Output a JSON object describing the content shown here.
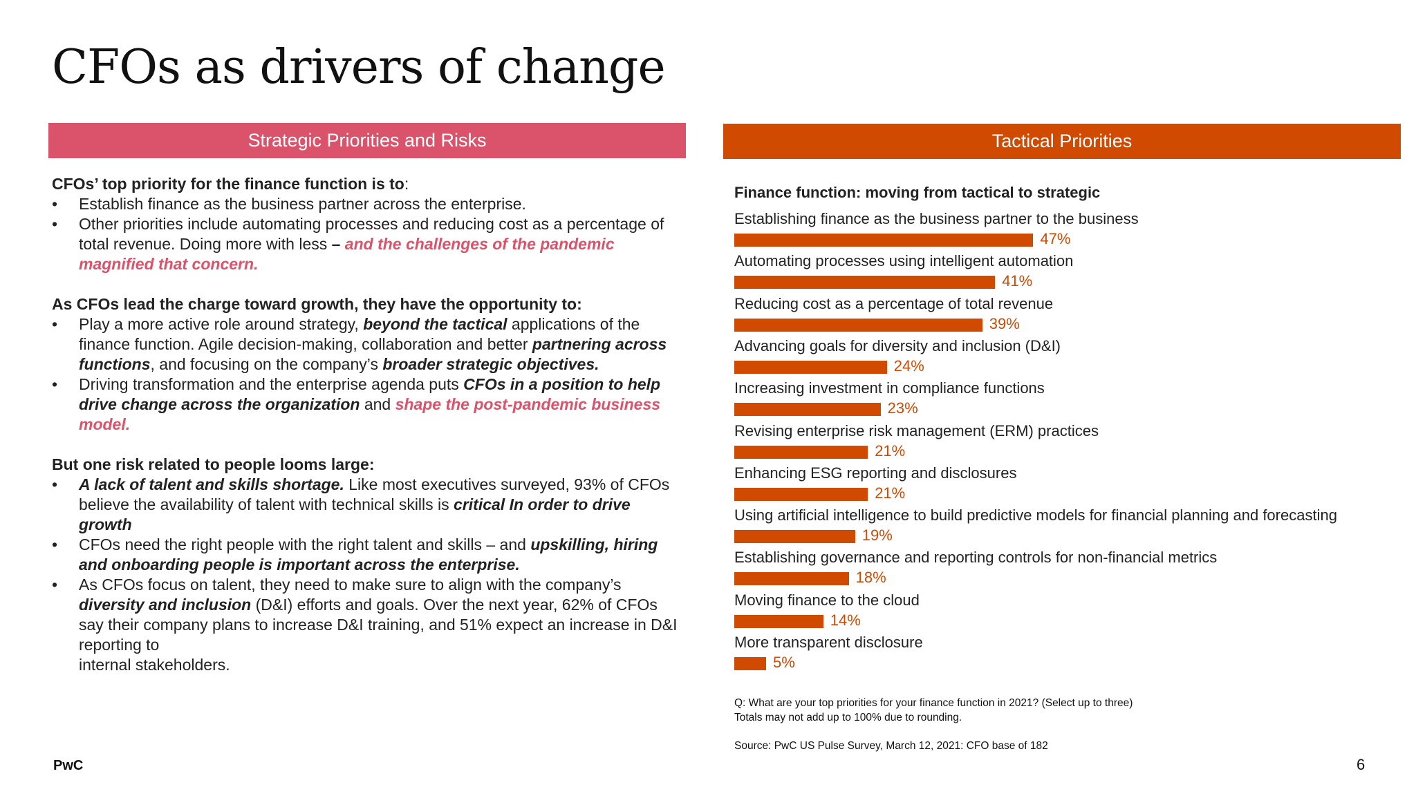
{
  "slide": {
    "title": "CFOs as drivers of change",
    "page_number": "6",
    "brand": "PwC"
  },
  "left_panel": {
    "header": "Strategic Priorities and Risks",
    "section1": {
      "heading_bold": "CFOs’ top priority for the finance function is to",
      "heading_tail": ":",
      "bullet1": "Establish finance as the business partner across the enterprise.",
      "bullet2_text": "Other priorities include automating processes and reducing cost as a percentage of total revenue. Doing more with less ",
      "bullet2_dash": "–",
      "bullet2_pink": " and the challenges of the pandemic magnified that concern."
    },
    "section2": {
      "heading": "As CFOs lead the charge toward growth, they have the opportunity to:",
      "b1_t1": "Play a more active role around strategy, ",
      "b1_bi1": "beyond the tactical",
      "b1_t2": " applications of the finance function. Agile decision-making, collaboration and better ",
      "b1_bi2": "partnering across functions",
      "b1_t3": ", and focusing on the company’s ",
      "b1_bi3": "broader strategic objectives.",
      "b2_t1": "Driving transformation and the enterprise agenda puts ",
      "b2_bi1": "CFOs in a position to help drive change across the organization",
      "b2_t2": " and ",
      "b2_pink": "shape the post-pandemic business model."
    },
    "section3": {
      "heading": "But one risk related to people looms large:",
      "b1_bi1": "A lack of talent and skills shortage.",
      "b1_t1": " Like most executives surveyed, 93% of CFOs believe the availability of talent with technical skills is ",
      "b1_bi2": "critical In order to drive growth",
      "b2_t1": "CFOs need the right people with the right talent and skills – and ",
      "b2_bi1": "upskilling, hiring and onboarding people is important across the enterprise.",
      "b3_t1": "As CFOs focus on talent, they need to make sure to align with the company’s ",
      "b3_bi1": "diversity and inclusion",
      "b3_t2": " (D&I) efforts and goals. Over the next year, 62% of CFOs say their company plans to increase D&I training, and 51% expect an increase in D&I reporting to",
      "b3_t3": "internal stakeholders."
    }
  },
  "right_panel": {
    "header": "Tactical Priorities",
    "note_question": "Q: What are your top priorities for your finance function in 2021? (Select up to three)",
    "note_rounding": "Totals may not add up to 100% due to rounding.",
    "source": "Source: PwC US Pulse Survey, March 12, 2021: CFO base of 182"
  },
  "chart_data": {
    "type": "bar",
    "orientation": "horizontal",
    "title": "Finance function: moving from tactical to strategic",
    "color": "#d04a02",
    "xlim": [
      0,
      100
    ],
    "categories": [
      "Establishing finance as the business partner to the business",
      "Automating processes using intelligent automation",
      "Reducing cost as a percentage of total revenue",
      "Advancing goals for diversity and inclusion (D&I)",
      "Increasing investment in compliance functions",
      "Revising enterprise risk management (ERM) practices",
      "Enhancing ESG reporting and disclosures",
      "Using artificial intelligence to build predictive models for financial planning and forecasting",
      "Establishing governance and reporting controls for non-financial metrics",
      "Moving finance to the cloud",
      "More transparent disclosure"
    ],
    "values": [
      47,
      41,
      39,
      24,
      23,
      21,
      21,
      19,
      18,
      14,
      5
    ],
    "value_labels": [
      "47%",
      "41%",
      "39%",
      "24%",
      "23%",
      "21%",
      "21%",
      "19%",
      "18%",
      "14%",
      "5%"
    ]
  }
}
